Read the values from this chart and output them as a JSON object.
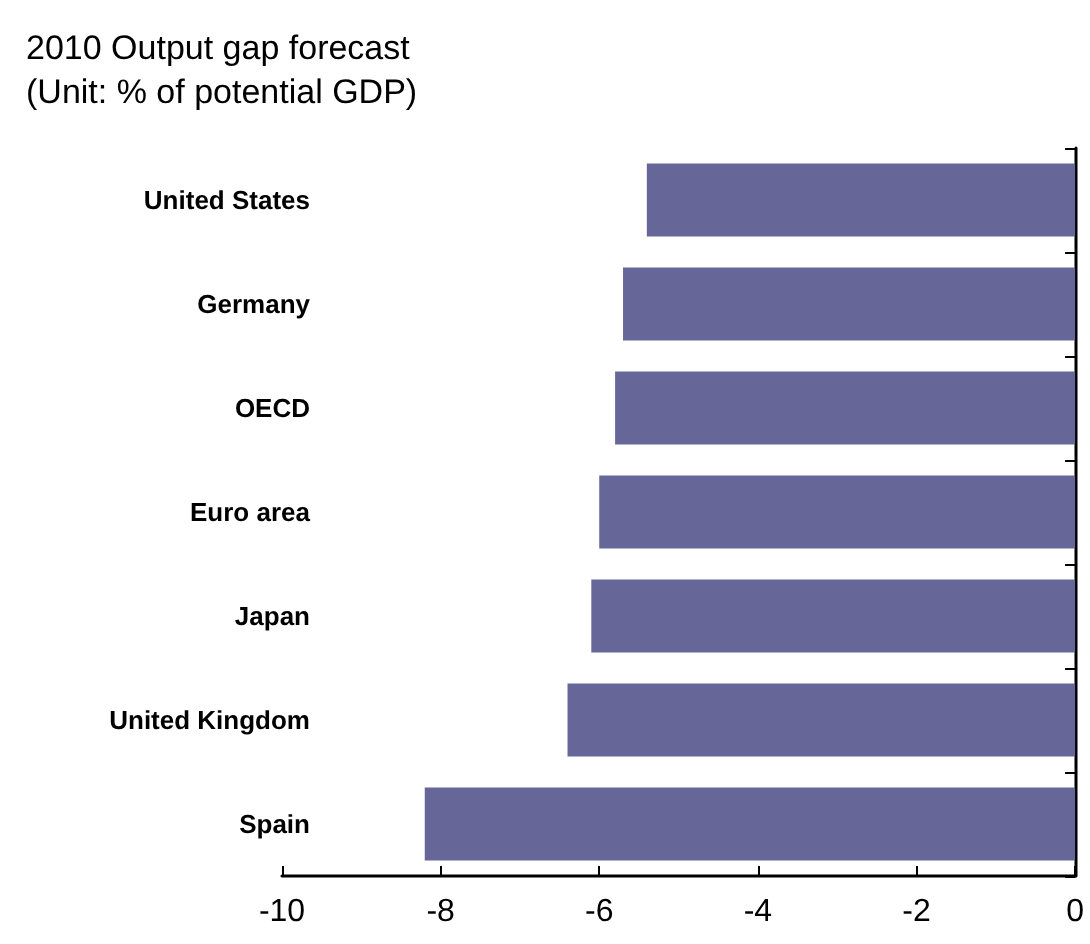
{
  "chart_data": {
    "type": "bar",
    "orientation": "horizontal",
    "title": "2010 Output gap forecast\n(Unit: % of potential GDP)",
    "categories": [
      "United States",
      "Germany",
      "OECD",
      "Euro area",
      "Japan",
      "United Kingdom",
      "Spain"
    ],
    "values": [
      -5.4,
      -5.7,
      -5.8,
      -6.0,
      -6.1,
      -6.4,
      -8.2
    ],
    "color": "#666699",
    "xlim": [
      -10,
      0
    ],
    "xticks": [
      -10,
      -8,
      -6,
      -4,
      -2,
      0
    ],
    "grid": false
  }
}
